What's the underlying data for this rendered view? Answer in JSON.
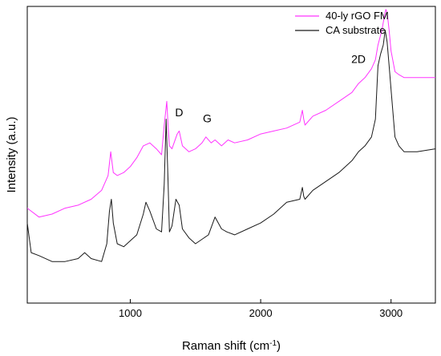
{
  "chart_data": {
    "type": "line",
    "xlabel": "Raman shift (cm",
    "xlabel_sup": "-1",
    "xlabel_end": ")",
    "ylabel": "Intensity (a.u.)",
    "xlim": [
      210,
      3340
    ],
    "ylim": [
      0,
      1
    ],
    "xticks": [
      1000,
      2000,
      3000
    ],
    "y_tick_labels_shown": false,
    "grid": false,
    "legend_position": "top-right",
    "series": [
      {
        "name": "40-ly rGO FM",
        "color": "#ff33ff",
        "x": [
          210,
          300,
          400,
          500,
          600,
          700,
          780,
          830,
          850,
          870,
          900,
          950,
          1000,
          1050,
          1100,
          1150,
          1200,
          1240,
          1260,
          1280,
          1290,
          1300,
          1320,
          1360,
          1375,
          1400,
          1450,
          1500,
          1550,
          1580,
          1620,
          1650,
          1700,
          1750,
          1800,
          1900,
          2000,
          2100,
          2200,
          2300,
          2320,
          2330,
          2340,
          2400,
          2500,
          2600,
          2700,
          2750,
          2800,
          2850,
          2880,
          2900,
          2930,
          2950,
          2960,
          2970,
          2985,
          3000,
          3030,
          3060,
          3100,
          3200,
          3340
        ],
        "y": [
          0.32,
          0.29,
          0.3,
          0.32,
          0.33,
          0.35,
          0.38,
          0.43,
          0.51,
          0.44,
          0.43,
          0.44,
          0.46,
          0.49,
          0.53,
          0.54,
          0.52,
          0.5,
          0.6,
          0.68,
          0.6,
          0.53,
          0.52,
          0.57,
          0.58,
          0.53,
          0.51,
          0.52,
          0.54,
          0.56,
          0.54,
          0.55,
          0.53,
          0.55,
          0.54,
          0.55,
          0.57,
          0.58,
          0.59,
          0.61,
          0.65,
          0.62,
          0.6,
          0.63,
          0.65,
          0.68,
          0.71,
          0.74,
          0.76,
          0.79,
          0.82,
          0.87,
          0.92,
          0.97,
          0.99,
          0.98,
          0.92,
          0.85,
          0.78,
          0.77,
          0.76,
          0.76,
          0.76
        ]
      },
      {
        "name": "CA substrate",
        "color": "#1a1a1a",
        "x": [
          210,
          240,
          300,
          400,
          500,
          600,
          650,
          700,
          780,
          820,
          840,
          855,
          870,
          900,
          950,
          1000,
          1050,
          1100,
          1120,
          1150,
          1200,
          1240,
          1260,
          1275,
          1290,
          1300,
          1320,
          1350,
          1375,
          1400,
          1450,
          1500,
          1600,
          1650,
          1700,
          1740,
          1800,
          1900,
          2000,
          2100,
          2200,
          2300,
          2320,
          2330,
          2340,
          2400,
          2500,
          2600,
          2700,
          2750,
          2800,
          2850,
          2880,
          2900,
          2920,
          2940,
          2955,
          2970,
          2985,
          3000,
          3030,
          3060,
          3100,
          3200,
          3340
        ],
        "y": [
          0.27,
          0.17,
          0.16,
          0.14,
          0.14,
          0.15,
          0.17,
          0.15,
          0.14,
          0.2,
          0.31,
          0.35,
          0.27,
          0.2,
          0.19,
          0.21,
          0.23,
          0.3,
          0.34,
          0.31,
          0.25,
          0.24,
          0.4,
          0.62,
          0.41,
          0.24,
          0.26,
          0.35,
          0.33,
          0.25,
          0.22,
          0.2,
          0.23,
          0.29,
          0.25,
          0.24,
          0.23,
          0.25,
          0.27,
          0.3,
          0.34,
          0.35,
          0.39,
          0.36,
          0.35,
          0.38,
          0.41,
          0.44,
          0.48,
          0.51,
          0.53,
          0.56,
          0.62,
          0.8,
          0.84,
          0.87,
          0.92,
          0.88,
          0.8,
          0.72,
          0.56,
          0.53,
          0.51,
          0.51,
          0.52
        ]
      }
    ],
    "annotations": [
      {
        "text": "D",
        "x": 1375,
        "y": 0.63
      },
      {
        "text": "G",
        "x": 1590,
        "y": 0.61
      },
      {
        "text": "2D",
        "x": 2750,
        "y": 0.81
      }
    ]
  }
}
